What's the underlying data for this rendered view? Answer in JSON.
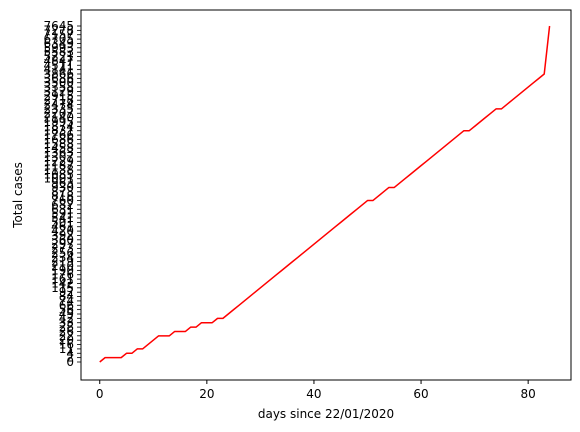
{
  "chart_data": {
    "type": "line",
    "xlabel": "days since 22/01/2020",
    "ylabel": "Total cases",
    "xlim": [
      -3.5,
      88
    ],
    "x_ticks": [
      0,
      20,
      40,
      60,
      80
    ],
    "grid": false,
    "y_scale": "categorical (each distinct total value is an evenly spaced tick)",
    "y_categories": [
      "0",
      "2",
      "4",
      "11",
      "16",
      "20",
      "22",
      "26",
      "28",
      "33",
      "42",
      "49",
      "56",
      "66",
      "74",
      "84",
      "92",
      "115",
      "142",
      "161",
      "176",
      "190",
      "210",
      "219",
      "234",
      "256",
      "273",
      "297",
      "360",
      "392",
      "420",
      "461",
      "501",
      "541",
      "591",
      "631",
      "682",
      "760",
      "818",
      "873",
      "930",
      "963",
      "1001",
      "1085",
      "1138",
      "1187",
      "1229",
      "1307",
      "1363",
      "1458",
      "1588",
      "1686",
      "1766",
      "1831",
      "1874",
      "1995",
      "2140",
      "2207",
      "2335",
      "2474",
      "2718",
      "2915",
      "3129",
      "3358",
      "3500",
      "3686",
      "3866",
      "4141",
      "4511",
      "4847",
      "5221",
      "5583",
      "5993",
      "6349",
      "6705",
      "7157",
      "7278",
      "7645"
    ],
    "series": [
      {
        "color": "#ff0000",
        "x": [
          0,
          1,
          2,
          3,
          4,
          5,
          6,
          7,
          8,
          9,
          10,
          11,
          12,
          13,
          14,
          15,
          16,
          17,
          18,
          19,
          20,
          21,
          22,
          23,
          24,
          25,
          26,
          27,
          28,
          29,
          30,
          31,
          32,
          33,
          34,
          35,
          36,
          37,
          38,
          39,
          40,
          41,
          42,
          43,
          44,
          45,
          46,
          47,
          48,
          49,
          50,
          51,
          52,
          53,
          54,
          55,
          56,
          57,
          58,
          59,
          60,
          61,
          62,
          63,
          64,
          65,
          66,
          67,
          68,
          69,
          70,
          71,
          72,
          73,
          74,
          75,
          76,
          77,
          78,
          79,
          80,
          81,
          82,
          83,
          84
        ],
        "y": [
          "0",
          "2",
          "2",
          "2",
          "2",
          "4",
          "4",
          "11",
          "11",
          "16",
          "20",
          "22",
          "22",
          "22",
          "26",
          "26",
          "26",
          "28",
          "28",
          "33",
          "33",
          "33",
          "42",
          "42",
          "49",
          "56",
          "66",
          "74",
          "84",
          "92",
          "115",
          "142",
          "161",
          "176",
          "190",
          "210",
          "219",
          "234",
          "256",
          "273",
          "297",
          "360",
          "392",
          "420",
          "461",
          "501",
          "541",
          "591",
          "631",
          "682",
          "760",
          "760",
          "818",
          "873",
          "930",
          "930",
          "963",
          "1001",
          "1085",
          "1138",
          "1187",
          "1229",
          "1307",
          "1363",
          "1458",
          "1588",
          "1686",
          "1766",
          "1831",
          "1831",
          "1874",
          "1995",
          "2140",
          "2207",
          "2335",
          "2335",
          "2474",
          "2718",
          "2915",
          "3129",
          "3358",
          "3500",
          "3686",
          "3866",
          "7645"
        ]
      }
    ]
  }
}
